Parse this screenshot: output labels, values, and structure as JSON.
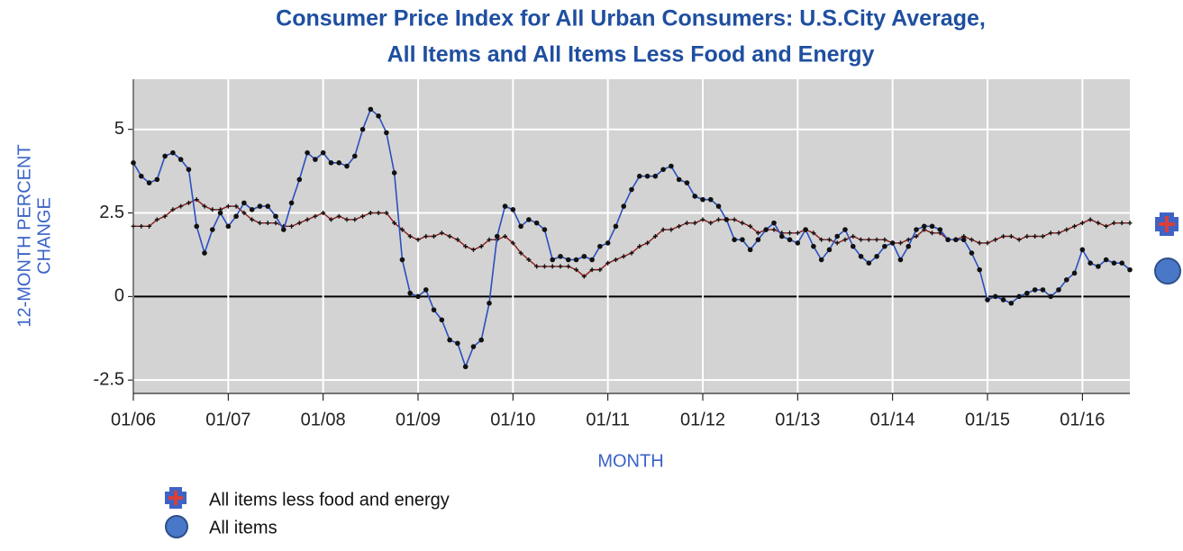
{
  "chart_data": {
    "type": "line",
    "title": [
      "Consumer Price Index for All Urban Consumers: U.S.City Average,",
      "All Items and All Items Less Food and Energy"
    ],
    "x_label": "MONTH",
    "y_label": [
      "12-MONTH PERCENT",
      "CHANGE"
    ],
    "x": [
      "2006-01",
      "2006-02",
      "2006-03",
      "2006-04",
      "2006-05",
      "2006-06",
      "2006-07",
      "2006-08",
      "2006-09",
      "2006-10",
      "2006-11",
      "2006-12",
      "2007-01",
      "2007-02",
      "2007-03",
      "2007-04",
      "2007-05",
      "2007-06",
      "2007-07",
      "2007-08",
      "2007-09",
      "2007-10",
      "2007-11",
      "2007-12",
      "2008-01",
      "2008-02",
      "2008-03",
      "2008-04",
      "2008-05",
      "2008-06",
      "2008-07",
      "2008-08",
      "2008-09",
      "2008-10",
      "2008-11",
      "2008-12",
      "2009-01",
      "2009-02",
      "2009-03",
      "2009-04",
      "2009-05",
      "2009-06",
      "2009-07",
      "2009-08",
      "2009-09",
      "2009-10",
      "2009-11",
      "2009-12",
      "2010-01",
      "2010-02",
      "2010-03",
      "2010-04",
      "2010-05",
      "2010-06",
      "2010-07",
      "2010-08",
      "2010-09",
      "2010-10",
      "2010-11",
      "2010-12",
      "2011-01",
      "2011-02",
      "2011-03",
      "2011-04",
      "2011-05",
      "2011-06",
      "2011-07",
      "2011-08",
      "2011-09",
      "2011-10",
      "2011-11",
      "2011-12",
      "2012-01",
      "2012-02",
      "2012-03",
      "2012-04",
      "2012-05",
      "2012-06",
      "2012-07",
      "2012-08",
      "2012-09",
      "2012-10",
      "2012-11",
      "2012-12",
      "2013-01",
      "2013-02",
      "2013-03",
      "2013-04",
      "2013-05",
      "2013-06",
      "2013-07",
      "2013-08",
      "2013-09",
      "2013-10",
      "2013-11",
      "2013-12",
      "2014-01",
      "2014-02",
      "2014-03",
      "2014-04",
      "2014-05",
      "2014-06",
      "2014-07",
      "2014-08",
      "2014-09",
      "2014-10",
      "2014-11",
      "2014-12",
      "2015-01",
      "2015-02",
      "2015-03",
      "2015-04",
      "2015-05",
      "2015-06",
      "2015-07",
      "2015-08",
      "2015-09",
      "2015-10",
      "2015-11",
      "2015-12",
      "2016-01",
      "2016-02",
      "2016-03",
      "2016-04",
      "2016-05",
      "2016-06",
      "2016-07"
    ],
    "series": [
      {
        "name": "All items less food and energy",
        "color": "#8b1a1a",
        "marker": "plus",
        "values": [
          2.1,
          2.1,
          2.1,
          2.3,
          2.4,
          2.6,
          2.7,
          2.8,
          2.9,
          2.7,
          2.6,
          2.6,
          2.7,
          2.7,
          2.5,
          2.3,
          2.2,
          2.2,
          2.2,
          2.1,
          2.1,
          2.2,
          2.3,
          2.4,
          2.5,
          2.3,
          2.4,
          2.3,
          2.3,
          2.4,
          2.5,
          2.5,
          2.5,
          2.2,
          2.0,
          1.8,
          1.7,
          1.8,
          1.8,
          1.9,
          1.8,
          1.7,
          1.5,
          1.4,
          1.5,
          1.7,
          1.7,
          1.8,
          1.6,
          1.3,
          1.1,
          0.9,
          0.9,
          0.9,
          0.9,
          0.9,
          0.8,
          0.6,
          0.8,
          0.8,
          1.0,
          1.1,
          1.2,
          1.3,
          1.5,
          1.6,
          1.8,
          2.0,
          2.0,
          2.1,
          2.2,
          2.2,
          2.3,
          2.2,
          2.3,
          2.3,
          2.3,
          2.2,
          2.1,
          1.9,
          2.0,
          2.0,
          1.9,
          1.9,
          1.9,
          2.0,
          1.9,
          1.7,
          1.7,
          1.6,
          1.7,
          1.8,
          1.7,
          1.7,
          1.7,
          1.7,
          1.6,
          1.6,
          1.7,
          1.8,
          2.0,
          1.9,
          1.9,
          1.7,
          1.7,
          1.8,
          1.7,
          1.6,
          1.6,
          1.7,
          1.8,
          1.8,
          1.7,
          1.8,
          1.8,
          1.8,
          1.9,
          1.9,
          2.0,
          2.1,
          2.2,
          2.3,
          2.2,
          2.1,
          2.2,
          2.2,
          2.2
        ]
      },
      {
        "name": "All items",
        "color": "#2a4fbf",
        "marker": "circle",
        "values": [
          4.0,
          3.6,
          3.4,
          3.5,
          4.2,
          4.3,
          4.1,
          3.8,
          2.1,
          1.3,
          2.0,
          2.5,
          2.1,
          2.4,
          2.8,
          2.6,
          2.7,
          2.7,
          2.4,
          2.0,
          2.8,
          3.5,
          4.3,
          4.1,
          4.3,
          4.0,
          4.0,
          3.9,
          4.2,
          5.0,
          5.6,
          5.4,
          4.9,
          3.7,
          1.1,
          0.1,
          0.0,
          0.2,
          -0.4,
          -0.7,
          -1.3,
          -1.4,
          -2.1,
          -1.5,
          -1.3,
          -0.2,
          1.8,
          2.7,
          2.6,
          2.1,
          2.3,
          2.2,
          2.0,
          1.1,
          1.2,
          1.1,
          1.1,
          1.2,
          1.1,
          1.5,
          1.6,
          2.1,
          2.7,
          3.2,
          3.6,
          3.6,
          3.6,
          3.8,
          3.9,
          3.5,
          3.4,
          3.0,
          2.9,
          2.9,
          2.7,
          2.3,
          1.7,
          1.7,
          1.4,
          1.7,
          2.0,
          2.2,
          1.8,
          1.7,
          1.6,
          2.0,
          1.5,
          1.1,
          1.4,
          1.8,
          2.0,
          1.5,
          1.2,
          1.0,
          1.2,
          1.5,
          1.6,
          1.1,
          1.5,
          2.0,
          2.1,
          2.1,
          2.0,
          1.7,
          1.7,
          1.7,
          1.3,
          0.8,
          -0.1,
          0.0,
          -0.1,
          -0.2,
          0.0,
          0.1,
          0.2,
          0.2,
          0.0,
          0.2,
          0.5,
          0.7,
          1.4,
          1.0,
          0.9,
          1.1,
          1.0,
          1.0,
          0.8
        ]
      }
    ],
    "xlim": [
      "2006-01",
      "2016-07"
    ],
    "xticks": [
      {
        "value": "2006-01",
        "label": "01/06"
      },
      {
        "value": "2007-01",
        "label": "01/07"
      },
      {
        "value": "2008-01",
        "label": "01/08"
      },
      {
        "value": "2009-01",
        "label": "01/09"
      },
      {
        "value": "2010-01",
        "label": "01/10"
      },
      {
        "value": "2011-01",
        "label": "01/11"
      },
      {
        "value": "2012-01",
        "label": "01/12"
      },
      {
        "value": "2013-01",
        "label": "01/13"
      },
      {
        "value": "2014-01",
        "label": "01/14"
      },
      {
        "value": "2015-01",
        "label": "01/15"
      },
      {
        "value": "2016-01",
        "label": "01/16"
      }
    ],
    "ylim": [
      -2.9,
      6.5
    ],
    "yticks": [
      -2.5,
      0,
      2.5,
      5
    ],
    "grid": true
  }
}
